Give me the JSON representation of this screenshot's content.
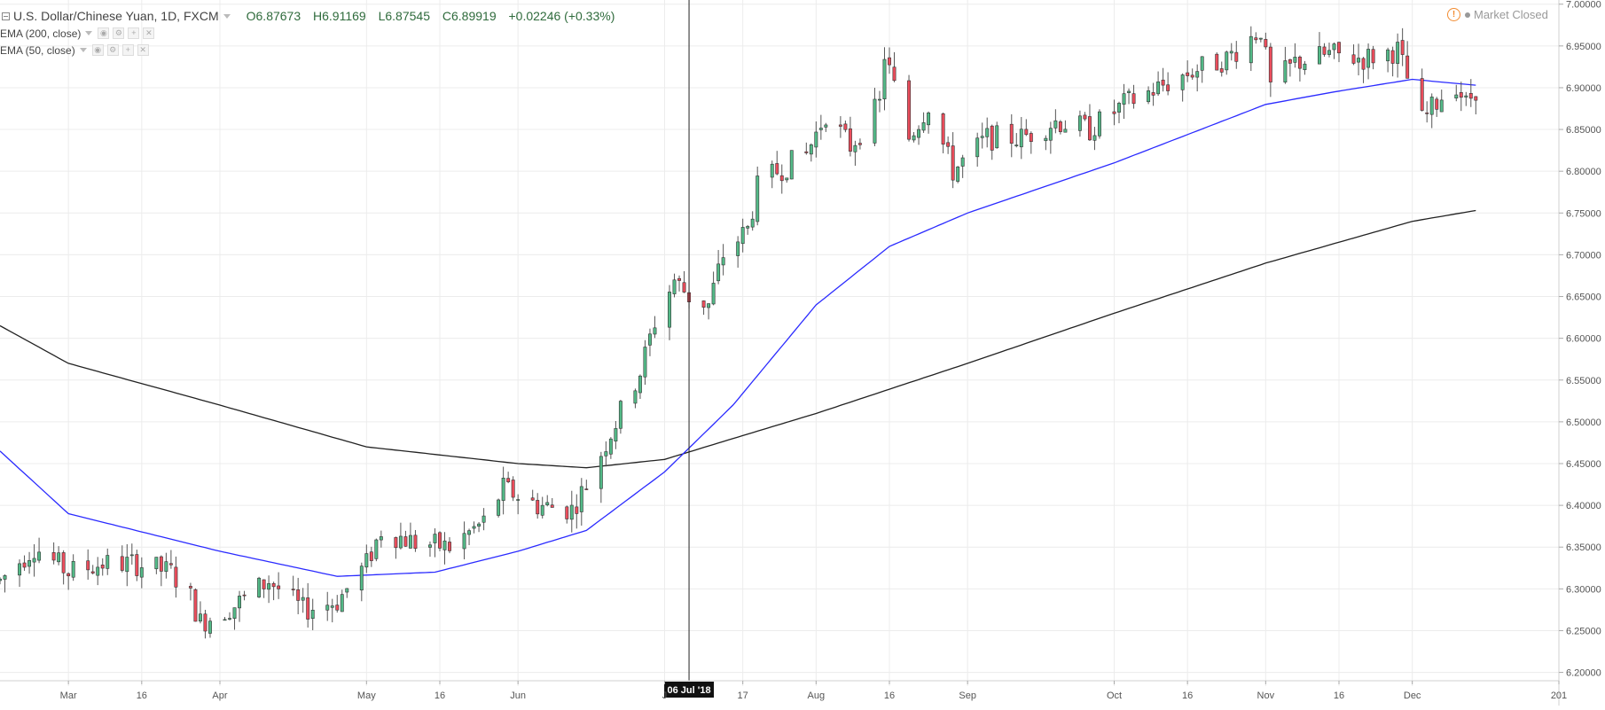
{
  "header": {
    "symbol_title": "U.S. Dollar/Chinese Yuan, 1D, FXCM",
    "ohlc": {
      "open": "O6.87673",
      "high": "H6.91169",
      "low": "L6.87545",
      "close": "C6.89919",
      "change": "+0.02246 (+0.33%)"
    },
    "indicators": [
      {
        "label": "EMA (200, close)",
        "color": "#222222"
      },
      {
        "label": "EMA (50, close)",
        "color": "#2b2bff"
      }
    ],
    "status": "Market Closed"
  },
  "crosshair": {
    "label": "06 Jul '18"
  },
  "chart_data": {
    "type": "candlestick",
    "title": "U.S. Dollar/Chinese Yuan, 1D, FXCM",
    "ylim": [
      6.19,
      7.005
    ],
    "y_ticks": [
      6.2,
      6.25,
      6.3,
      6.35,
      6.4,
      6.45,
      6.5,
      6.55,
      6.6,
      6.65,
      6.7,
      6.75,
      6.8,
      6.85,
      6.9,
      6.95,
      7.0
    ],
    "y_tick_labels": [
      "6.20000",
      "6.25000",
      "6.30000",
      "6.35000",
      "6.40000",
      "6.45000",
      "6.50000",
      "6.55000",
      "6.60000",
      "6.65000",
      "6.70000",
      "6.75000",
      "6.80000",
      "6.85000",
      "6.90000",
      "6.95000",
      "7.00000"
    ],
    "x_range": [
      "2018-02-15",
      "2018-12-31"
    ],
    "x_ticks": [
      {
        "date": "2018-03-01",
        "label": "Mar"
      },
      {
        "date": "2018-03-16",
        "label": "16"
      },
      {
        "date": "2018-04-01",
        "label": "Apr"
      },
      {
        "date": "2018-05-01",
        "label": "May"
      },
      {
        "date": "2018-05-16",
        "label": "16"
      },
      {
        "date": "2018-06-01",
        "label": "Jun"
      },
      {
        "date": "2018-07-01",
        "label": "J"
      },
      {
        "date": "2018-07-17",
        "label": "17"
      },
      {
        "date": "2018-08-01",
        "label": "Aug"
      },
      {
        "date": "2018-08-16",
        "label": "16"
      },
      {
        "date": "2018-09-01",
        "label": "Sep"
      },
      {
        "date": "2018-10-01",
        "label": "Oct"
      },
      {
        "date": "2018-10-16",
        "label": "16"
      },
      {
        "date": "2018-11-01",
        "label": "Nov"
      },
      {
        "date": "2018-11-16",
        "label": "16"
      },
      {
        "date": "2018-12-01",
        "label": "Dec"
      },
      {
        "date": "2018-12-31",
        "label": "201"
      }
    ],
    "grid": true,
    "up_color": "#53b987",
    "down_color": "#eb4d5c",
    "close_anchors": [
      [
        "2018-02-15",
        6.31
      ],
      [
        "2018-02-22",
        6.35
      ],
      [
        "2018-03-01",
        6.32
      ],
      [
        "2018-03-08",
        6.33
      ],
      [
        "2018-03-15",
        6.33
      ],
      [
        "2018-03-22",
        6.32
      ],
      [
        "2018-03-26",
        6.29
      ],
      [
        "2018-03-28",
        6.26
      ],
      [
        "2018-04-04",
        6.28
      ],
      [
        "2018-04-11",
        6.31
      ],
      [
        "2018-04-18",
        6.275
      ],
      [
        "2018-04-25",
        6.285
      ],
      [
        "2018-05-01",
        6.33
      ],
      [
        "2018-05-04",
        6.37
      ],
      [
        "2018-05-11",
        6.355
      ],
      [
        "2018-05-18",
        6.35
      ],
      [
        "2018-05-25",
        6.38
      ],
      [
        "2018-05-29",
        6.42
      ],
      [
        "2018-06-05",
        6.4
      ],
      [
        "2018-06-12",
        6.395
      ],
      [
        "2018-06-15",
        6.425
      ],
      [
        "2018-06-19",
        6.475
      ],
      [
        "2018-06-26",
        6.56
      ],
      [
        "2018-06-29",
        6.62
      ],
      [
        "2018-07-03",
        6.67
      ],
      [
        "2018-07-06",
        6.65
      ],
      [
        "2018-07-10",
        6.64
      ],
      [
        "2018-07-13",
        6.7
      ],
      [
        "2018-07-18",
        6.73
      ],
      [
        "2018-07-20",
        6.78
      ],
      [
        "2018-07-24",
        6.8
      ],
      [
        "2018-07-30",
        6.82
      ],
      [
        "2018-08-03",
        6.87
      ],
      [
        "2018-08-08",
        6.83
      ],
      [
        "2018-08-14",
        6.88
      ],
      [
        "2018-08-15",
        6.94
      ],
      [
        "2018-08-20",
        6.84
      ],
      [
        "2018-08-24",
        6.88
      ],
      [
        "2018-08-29",
        6.8
      ],
      [
        "2018-09-05",
        6.84
      ],
      [
        "2018-09-12",
        6.84
      ],
      [
        "2018-09-19",
        6.86
      ],
      [
        "2018-09-26",
        6.85
      ],
      [
        "2018-10-03",
        6.88
      ],
      [
        "2018-10-10",
        6.9
      ],
      [
        "2018-10-17",
        6.92
      ],
      [
        "2018-10-24",
        6.935
      ],
      [
        "2018-10-31",
        6.97
      ],
      [
        "2018-11-02",
        6.9
      ],
      [
        "2018-11-07",
        6.93
      ],
      [
        "2018-11-14",
        6.94
      ],
      [
        "2018-11-21",
        6.935
      ],
      [
        "2018-11-28",
        6.945
      ],
      [
        "2018-12-03",
        6.86
      ],
      [
        "2018-12-07",
        6.89
      ],
      [
        "2018-12-10",
        6.905
      ],
      [
        "2018-12-12",
        6.88
      ],
      [
        "2018-12-14",
        6.899
      ]
    ],
    "ema200_anchors": [
      [
        "2018-02-15",
        6.615
      ],
      [
        "2018-03-01",
        6.57
      ],
      [
        "2018-04-01",
        6.52
      ],
      [
        "2018-05-01",
        6.47
      ],
      [
        "2018-06-01",
        6.45
      ],
      [
        "2018-06-15",
        6.445
      ],
      [
        "2018-07-01",
        6.455
      ],
      [
        "2018-07-15",
        6.48
      ],
      [
        "2018-08-01",
        6.51
      ],
      [
        "2018-09-01",
        6.57
      ],
      [
        "2018-10-01",
        6.63
      ],
      [
        "2018-11-01",
        6.69
      ],
      [
        "2018-12-01",
        6.74
      ],
      [
        "2018-12-14",
        6.753
      ]
    ],
    "ema50_anchors": [
      [
        "2018-02-15",
        6.465
      ],
      [
        "2018-03-01",
        6.39
      ],
      [
        "2018-04-01",
        6.345
      ],
      [
        "2018-04-25",
        6.315
      ],
      [
        "2018-05-15",
        6.32
      ],
      [
        "2018-06-01",
        6.345
      ],
      [
        "2018-06-15",
        6.37
      ],
      [
        "2018-07-01",
        6.44
      ],
      [
        "2018-07-15",
        6.52
      ],
      [
        "2018-08-01",
        6.64
      ],
      [
        "2018-08-16",
        6.71
      ],
      [
        "2018-09-01",
        6.75
      ],
      [
        "2018-10-01",
        6.81
      ],
      [
        "2018-11-01",
        6.88
      ],
      [
        "2018-11-15",
        6.895
      ],
      [
        "2018-12-01",
        6.91
      ],
      [
        "2018-12-14",
        6.903
      ]
    ]
  }
}
